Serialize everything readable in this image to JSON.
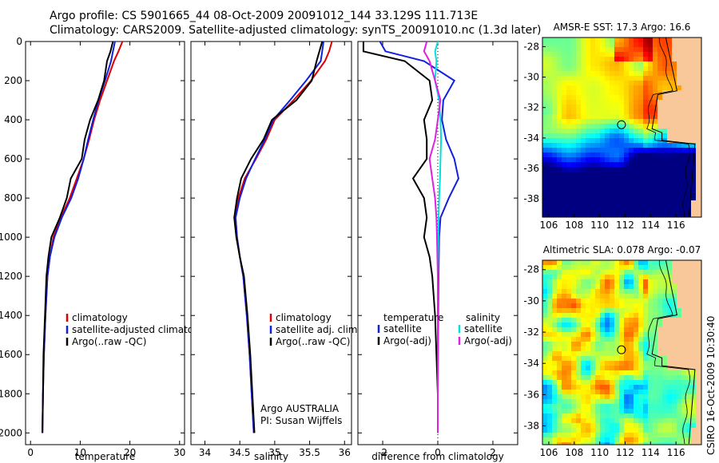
{
  "title_line1": "Argo profile: CS 5901665_44 08-Oct-2009 20091012_144 33.129S 111.713E",
  "title_line2": "Climatology: CARS2009. Satellite-adjusted climatology: synTS_20091010.nc (1.3d later)",
  "credit_text": "Argo AUSTRALIA",
  "pi_text": "PI: Susan Wijffels",
  "side_stamp": "CSIRO 16-Oct-2009 10:30:40",
  "colors": {
    "climatology": "#e00000",
    "satellite": "#1020e0",
    "argo": "#000000",
    "sat_salinity": "#00e0e0",
    "argo_salinity": "#e020e0"
  },
  "chart_data": [
    {
      "type": "line",
      "xlabel": "temperature",
      "xlim": [
        -1,
        31
      ],
      "ylim": [
        2060,
        0
      ],
      "xticks": [
        "0",
        "10",
        "20",
        "30"
      ],
      "yticks": [
        "0",
        "200",
        "400",
        "600",
        "800",
        "1000",
        "1200",
        "1400",
        "1600",
        "1800",
        "2000"
      ],
      "legend": [
        "climatology",
        "satellite-adjusted climatology",
        "Argo(..raw -QC)"
      ],
      "series": [
        {
          "name": "climatology",
          "color": "#e00000",
          "points": [
            [
              18.5,
              0
            ],
            [
              17.7,
              50
            ],
            [
              16.8,
              100
            ],
            [
              15.4,
              200
            ],
            [
              14.0,
              300
            ],
            [
              12.8,
              400
            ],
            [
              11.8,
              500
            ],
            [
              10.7,
              600
            ],
            [
              9.3,
              700
            ],
            [
              7.9,
              800
            ],
            [
              6.1,
              900
            ],
            [
              4.6,
              1000
            ],
            [
              3.9,
              1100
            ],
            [
              3.4,
              1200
            ],
            [
              3.0,
              1400
            ],
            [
              2.7,
              1600
            ],
            [
              2.5,
              1800
            ],
            [
              2.4,
              2000
            ]
          ]
        },
        {
          "name": "satellite-adjusted climatology",
          "color": "#1020e0",
          "points": [
            [
              17.0,
              0
            ],
            [
              16.6,
              50
            ],
            [
              16.2,
              100
            ],
            [
              15.0,
              200
            ],
            [
              13.7,
              300
            ],
            [
              12.6,
              400
            ],
            [
              11.6,
              500
            ],
            [
              10.7,
              600
            ],
            [
              9.6,
              700
            ],
            [
              8.2,
              800
            ],
            [
              6.3,
              900
            ],
            [
              4.8,
              1000
            ],
            [
              3.9,
              1100
            ],
            [
              3.4,
              1200
            ],
            [
              3.0,
              1400
            ],
            [
              2.7,
              1600
            ],
            [
              2.5,
              1800
            ],
            [
              2.4,
              2000
            ]
          ]
        },
        {
          "name": "Argo(..raw -QC)",
          "color": "#000000",
          "points": [
            [
              16.6,
              0
            ],
            [
              16.1,
              50
            ],
            [
              15.4,
              100
            ],
            [
              14.8,
              200
            ],
            [
              13.6,
              300
            ],
            [
              12.0,
              400
            ],
            [
              10.9,
              500
            ],
            [
              10.3,
              600
            ],
            [
              8.1,
              700
            ],
            [
              7.3,
              800
            ],
            [
              5.9,
              900
            ],
            [
              4.2,
              1000
            ],
            [
              3.6,
              1100
            ],
            [
              3.2,
              1200
            ],
            [
              2.9,
              1400
            ],
            [
              2.6,
              1600
            ],
            [
              2.5,
              1800
            ],
            [
              2.4,
              2000
            ]
          ]
        }
      ]
    },
    {
      "type": "line",
      "xlabel": "salinity",
      "xlim": [
        33.8,
        36.1
      ],
      "ylim": [
        2060,
        0
      ],
      "xticks": [
        "34",
        "34.5",
        "35",
        "35.5",
        "36"
      ],
      "legend": [
        "climatology",
        "satellite adj. clim.",
        "Argo(..raw -QC)"
      ],
      "series": [
        {
          "name": "climatology",
          "color": "#e00000",
          "points": [
            [
              35.82,
              0
            ],
            [
              35.78,
              50
            ],
            [
              35.72,
              100
            ],
            [
              35.52,
              200
            ],
            [
              35.27,
              300
            ],
            [
              35.0,
              400
            ],
            [
              34.88,
              500
            ],
            [
              34.73,
              600
            ],
            [
              34.57,
              700
            ],
            [
              34.48,
              800
            ],
            [
              34.44,
              900
            ],
            [
              34.46,
              1000
            ],
            [
              34.5,
              1100
            ],
            [
              34.55,
              1200
            ],
            [
              34.6,
              1400
            ],
            [
              34.64,
              1600
            ],
            [
              34.67,
              1800
            ],
            [
              34.7,
              2000
            ]
          ]
        },
        {
          "name": "satellite adj. clim.",
          "color": "#1020e0",
          "points": [
            [
              35.7,
              0
            ],
            [
              35.68,
              50
            ],
            [
              35.66,
              100
            ],
            [
              35.45,
              200
            ],
            [
              35.22,
              300
            ],
            [
              34.98,
              400
            ],
            [
              34.86,
              500
            ],
            [
              34.72,
              600
            ],
            [
              34.59,
              700
            ],
            [
              34.5,
              800
            ],
            [
              34.44,
              900
            ],
            [
              34.46,
              1000
            ],
            [
              34.5,
              1100
            ],
            [
              34.55,
              1200
            ],
            [
              34.6,
              1400
            ],
            [
              34.64,
              1600
            ],
            [
              34.67,
              1800
            ],
            [
              34.7,
              2000
            ]
          ]
        },
        {
          "name": "Argo(..raw -QC)",
          "color": "#000000",
          "points": [
            [
              35.68,
              0
            ],
            [
              35.64,
              50
            ],
            [
              35.6,
              100
            ],
            [
              35.53,
              200
            ],
            [
              35.31,
              300
            ],
            [
              34.96,
              400
            ],
            [
              34.84,
              500
            ],
            [
              34.66,
              600
            ],
            [
              34.52,
              700
            ],
            [
              34.46,
              800
            ],
            [
              34.42,
              900
            ],
            [
              34.45,
              1000
            ],
            [
              34.5,
              1100
            ],
            [
              34.56,
              1200
            ],
            [
              34.61,
              1400
            ],
            [
              34.65,
              1600
            ],
            [
              34.68,
              1800
            ],
            [
              34.71,
              2000
            ]
          ]
        }
      ]
    },
    {
      "type": "line",
      "xlabel": "difference from climatology",
      "xlim": [
        -2.9,
        2.9
      ],
      "ylim": [
        2060,
        0
      ],
      "xticks": [
        "-2",
        "0",
        "2"
      ],
      "legend_left_header": "temperature",
      "legend_right_header": "salinity",
      "legend_left": [
        "satellite",
        "Argo(-adj)"
      ],
      "legend_right": [
        "satellite",
        "Argo(-adj)"
      ],
      "series": [
        {
          "name": "temperature satellite",
          "color": "#1020e0",
          "points": [
            [
              -2.1,
              0
            ],
            [
              -1.9,
              50
            ],
            [
              -0.5,
              100
            ],
            [
              0.6,
              200
            ],
            [
              0.2,
              300
            ],
            [
              0.15,
              400
            ],
            [
              0.3,
              500
            ],
            [
              0.6,
              600
            ],
            [
              0.75,
              700
            ],
            [
              0.4,
              800
            ],
            [
              0.1,
              900
            ],
            [
              0.05,
              1000
            ],
            [
              0.03,
              1200
            ],
            [
              0.02,
              1400
            ],
            [
              0.01,
              1600
            ],
            [
              0.0,
              1800
            ],
            [
              0.0,
              2000
            ]
          ]
        },
        {
          "name": "temperature Argo(-adj)",
          "color": "#000000",
          "points": [
            [
              -2.7,
              0
            ],
            [
              -2.7,
              50
            ],
            [
              -1.2,
              100
            ],
            [
              -0.3,
              200
            ],
            [
              -0.2,
              300
            ],
            [
              -0.5,
              400
            ],
            [
              -0.4,
              500
            ],
            [
              -0.4,
              600
            ],
            [
              -0.9,
              700
            ],
            [
              -0.5,
              800
            ],
            [
              -0.4,
              900
            ],
            [
              -0.5,
              1000
            ],
            [
              -0.3,
              1100
            ],
            [
              -0.2,
              1200
            ],
            [
              -0.1,
              1400
            ],
            [
              -0.05,
              1600
            ],
            [
              0.0,
              1800
            ],
            [
              0.0,
              2000
            ]
          ]
        },
        {
          "name": "salinity satellite",
          "color": "#00e0e0",
          "points": [
            [
              0.0,
              0
            ],
            [
              -0.1,
              50
            ],
            [
              -0.05,
              100
            ],
            [
              -0.1,
              200
            ],
            [
              0.05,
              300
            ],
            [
              0.1,
              400
            ],
            [
              0.12,
              500
            ],
            [
              0.1,
              600
            ],
            [
              0.08,
              700
            ],
            [
              0.05,
              800
            ],
            [
              0.03,
              900
            ],
            [
              0.02,
              1000
            ],
            [
              0.01,
              1200
            ],
            [
              0.01,
              1400
            ],
            [
              0.0,
              1600
            ],
            [
              0.0,
              1800
            ],
            [
              0.0,
              2000
            ]
          ]
        },
        {
          "name": "salinity Argo(-adj)",
          "color": "#e020e0",
          "points": [
            [
              -0.4,
              0
            ],
            [
              -0.5,
              50
            ],
            [
              -0.3,
              100
            ],
            [
              -0.1,
              200
            ],
            [
              0.1,
              300
            ],
            [
              0.0,
              400
            ],
            [
              -0.1,
              500
            ],
            [
              -0.3,
              600
            ],
            [
              -0.2,
              700
            ],
            [
              -0.1,
              800
            ],
            [
              -0.05,
              900
            ],
            [
              -0.03,
              1000
            ],
            [
              0.0,
              1200
            ],
            [
              0.0,
              1400
            ],
            [
              0.0,
              1600
            ],
            [
              0.0,
              1800
            ],
            [
              0.0,
              2000
            ]
          ]
        }
      ]
    },
    {
      "type": "heatmap",
      "title": "AMSR-E SST: 17.3 Argo: 16.6",
      "xlim": [
        105.5,
        118
      ],
      "ylim": [
        -39.2,
        -27.4
      ],
      "xticks": [
        "106",
        "108",
        "110",
        "112",
        "114",
        "116"
      ],
      "yticks": [
        "-28",
        "-30",
        "-32",
        "-34",
        "-36",
        "-38"
      ],
      "float_position": [
        111.713,
        -33.129
      ]
    },
    {
      "type": "heatmap",
      "title": "Altimetric SLA: 0.078 Argo: -0.07",
      "xlim": [
        105.5,
        118
      ],
      "ylim": [
        -39.2,
        -27.4
      ],
      "xticks": [
        "106",
        "108",
        "110",
        "112",
        "114",
        "116"
      ],
      "yticks": [
        "-28",
        "-30",
        "-32",
        "-34",
        "-36",
        "-38"
      ],
      "float_position": [
        111.713,
        -33.129
      ]
    }
  ]
}
